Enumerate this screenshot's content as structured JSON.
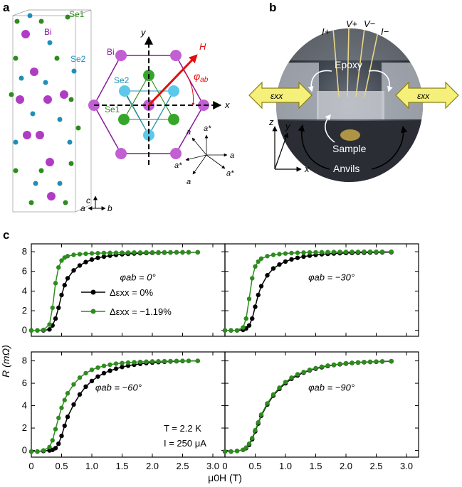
{
  "panel_a": {
    "letter": "a",
    "crystal_labels": {
      "bi": "Bi",
      "se1": "Se1",
      "se2": "Se2"
    },
    "crystal_axes": {
      "c": "c",
      "a": "a",
      "b": "b"
    },
    "hex_labels": {
      "bi": "Bi",
      "se2": "Se2",
      "se1": "Se1",
      "y": "y",
      "x": "x",
      "h": "H",
      "phi": "φ",
      "phi_sub": "ab"
    },
    "lattice_labels": {
      "a": "a",
      "a_star": "a*"
    }
  },
  "panel_b": {
    "letter": "b",
    "contacts": {
      "i_plus": "I+",
      "v_plus": "V+",
      "v_minus": "V−",
      "i_minus": "I−"
    },
    "epoxy": "Epoxy",
    "sample": "Sample",
    "anvils": "Anvils",
    "strain_label": "εxx",
    "axes": {
      "x": "x",
      "y": "y",
      "z": "z"
    },
    "colors": {
      "arrow_fill": "#f4f07a",
      "arrow_stroke": "#8a7f16"
    }
  },
  "panel_c": {
    "letter": "c",
    "ylabel": "R (mΩ)",
    "xlabel": "μ0H (T)",
    "annotation_T": "T = 2.2 K",
    "annotation_I": "I = 250 μA",
    "colors": {
      "black_series": "#000000",
      "green_series": "#2e8b1e"
    }
  },
  "chart_data": {
    "type": "line",
    "xlim": [
      0,
      3.2
    ],
    "ylim": [
      -0.6,
      8.8
    ],
    "xticks": [
      "0",
      "0.5",
      "1.0",
      "1.5",
      "2.0",
      "2.5",
      "3.0"
    ],
    "yticks": [
      "0",
      "2",
      "4",
      "6",
      "8"
    ],
    "legend": [
      {
        "name": "Δεxx = 0%",
        "color": "#000000"
      },
      {
        "name": "Δεxx = −1.19%",
        "color": "#2e8b1e"
      }
    ],
    "x": [
      0.0,
      0.1,
      0.2,
      0.3,
      0.35,
      0.4,
      0.45,
      0.5,
      0.55,
      0.6,
      0.7,
      0.8,
      0.9,
      1.0,
      1.1,
      1.2,
      1.3,
      1.4,
      1.5,
      1.6,
      1.7,
      1.8,
      1.9,
      2.0,
      2.1,
      2.2,
      2.3,
      2.4,
      2.5,
      2.6,
      2.75
    ],
    "subplots": [
      {
        "label": "φab = 0°",
        "series": [
          {
            "name": "Δεxx = 0%",
            "values": [
              0,
              0,
              0,
              0.1,
              0.5,
              1.2,
              2.3,
              3.6,
              4.6,
              5.3,
              6.1,
              6.6,
              6.95,
              7.2,
              7.38,
              7.5,
              7.6,
              7.68,
              7.74,
              7.78,
              7.82,
              7.85,
              7.87,
              7.89,
              7.9,
              7.91,
              7.92,
              7.93,
              7.93,
              7.94,
              7.94
            ]
          },
          {
            "name": "Δεxx = −1.19%",
            "values": [
              0,
              0,
              0.05,
              0.6,
              2.3,
              4.8,
              6.4,
              7.1,
              7.4,
              7.55,
              7.68,
              7.75,
              7.8,
              7.83,
              7.85,
              7.87,
              7.88,
              7.89,
              7.9,
              7.91,
              7.92,
              7.92,
              7.93,
              7.93,
              7.94,
              7.94,
              7.94,
              7.95,
              7.95,
              7.95,
              7.95
            ]
          }
        ]
      },
      {
        "label": "φab = −30°",
        "series": [
          {
            "name": "Δεxx = 0%",
            "values": [
              0,
              0,
              0,
              0.05,
              0.2,
              0.5,
              1.2,
              2.4,
              3.6,
              4.5,
              5.6,
              6.3,
              6.7,
              7.0,
              7.22,
              7.38,
              7.5,
              7.6,
              7.68,
              7.74,
              7.78,
              7.82,
              7.85,
              7.87,
              7.89,
              7.9,
              7.91,
              7.92,
              7.93,
              7.94,
              7.95
            ]
          },
          {
            "name": "Δεxx = −1.19%",
            "values": [
              0,
              0,
              0,
              0.3,
              1.2,
              3.2,
              5.3,
              6.5,
              7.0,
              7.3,
              7.55,
              7.68,
              7.76,
              7.82,
              7.86,
              7.89,
              7.91,
              7.93,
              7.94,
              7.95,
              7.96,
              7.97,
              7.98,
              7.98,
              7.99,
              7.99,
              8.0,
              8.0,
              8.0,
              8.0,
              8.0
            ]
          }
        ]
      },
      {
        "label": "φab = −60°",
        "series": [
          {
            "name": "Δεxx = 0%",
            "values": [
              -0.1,
              -0.1,
              -0.05,
              0.0,
              0.05,
              0.2,
              0.6,
              1.3,
              2.2,
              3.0,
              4.1,
              5.0,
              5.7,
              6.2,
              6.6,
              6.9,
              7.12,
              7.3,
              7.45,
              7.57,
              7.66,
              7.74,
              7.8,
              7.85,
              7.89,
              7.92,
              7.95,
              7.97,
              7.98,
              8.0,
              8.0
            ]
          },
          {
            "name": "Δεxx = −1.19%",
            "values": [
              -0.1,
              -0.1,
              0.0,
              0.3,
              0.9,
              1.9,
              2.9,
              3.8,
              4.5,
              5.1,
              5.9,
              6.5,
              6.9,
              7.2,
              7.4,
              7.55,
              7.66,
              7.75,
              7.8,
              7.85,
              7.88,
              7.91,
              7.93,
              7.95,
              7.96,
              7.97,
              7.98,
              7.99,
              8.0,
              8.0,
              8.0
            ]
          }
        ]
      },
      {
        "label": "φab = −90°",
        "series": [
          {
            "name": "Δεxx = 0%",
            "values": [
              -0.1,
              -0.1,
              -0.05,
              0.05,
              0.2,
              0.5,
              1.0,
              1.7,
              2.4,
              3.1,
              4.1,
              4.9,
              5.5,
              6.0,
              6.4,
              6.7,
              6.95,
              7.15,
              7.3,
              7.43,
              7.54,
              7.63,
              7.7,
              7.76,
              7.81,
              7.85,
              7.88,
              7.9,
              7.92,
              7.94,
              7.96
            ]
          },
          {
            "name": "Δεxx = −1.19%",
            "values": [
              -0.1,
              -0.1,
              -0.05,
              0.05,
              0.25,
              0.6,
              1.1,
              1.8,
              2.5,
              3.2,
              4.2,
              5.0,
              5.6,
              6.1,
              6.5,
              6.8,
              7.0,
              7.2,
              7.35,
              7.48,
              7.58,
              7.66,
              7.73,
              7.79,
              7.83,
              7.87,
              7.9,
              7.92,
              7.94,
              7.96,
              7.98
            ]
          }
        ]
      }
    ]
  }
}
